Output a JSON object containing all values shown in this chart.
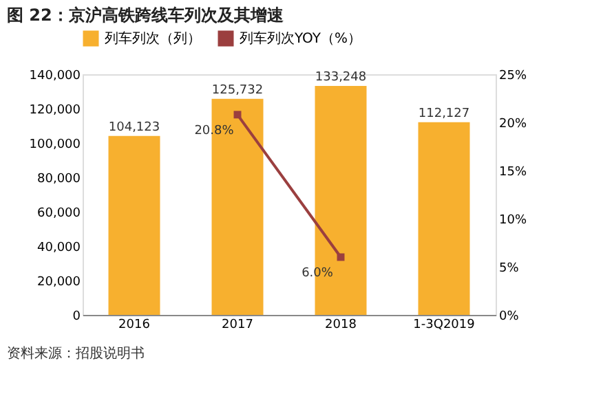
{
  "chart_data": {
    "type": "bar",
    "title": "图 22：京沪高铁跨线车列次及其增速",
    "categories": [
      "2016",
      "2017",
      "2018",
      "1-3Q2019"
    ],
    "series": [
      {
        "name": "列车列次（列）",
        "color": "#f7b02f",
        "values": [
          104123,
          125732,
          133248,
          112127
        ],
        "value_labels": [
          "104,123",
          "125,732",
          "133,248",
          "112,127"
        ]
      },
      {
        "name": "列车列次YOY（%）",
        "type": "line",
        "axis": "y2",
        "color": "#9b3f3f",
        "values": [
          null,
          20.8,
          6.0,
          null
        ],
        "value_labels": [
          null,
          "20.8%",
          "6.0%",
          null
        ]
      }
    ],
    "ylim": [
      0,
      140000
    ],
    "yticks": [
      0,
      {
        "value": 20000,
        "label": "20,000"
      },
      {
        "value": 40000,
        "label": "40,000"
      },
      {
        "value": 60000,
        "label": "60,000"
      },
      {
        "value": 80000,
        "label": "80,000"
      },
      {
        "value": 100000,
        "label": "100,000"
      },
      {
        "value": 120000,
        "label": "120,000"
      },
      {
        "value": 140000,
        "label": "140,000"
      }
    ],
    "y2lim": [
      0,
      25
    ],
    "y2ticks": [
      {
        "value": 0,
        "label": "0%"
      },
      {
        "value": 5,
        "label": "5%"
      },
      {
        "value": 10,
        "label": "10%"
      },
      {
        "value": 15,
        "label": "15%"
      },
      {
        "value": 20,
        "label": "20%"
      },
      {
        "value": 25,
        "label": "25%"
      }
    ],
    "legend": "top",
    "grid": false,
    "marker": "square",
    "line_style": "solid",
    "annotations": [
      "资料来源：招股说明书"
    ]
  }
}
